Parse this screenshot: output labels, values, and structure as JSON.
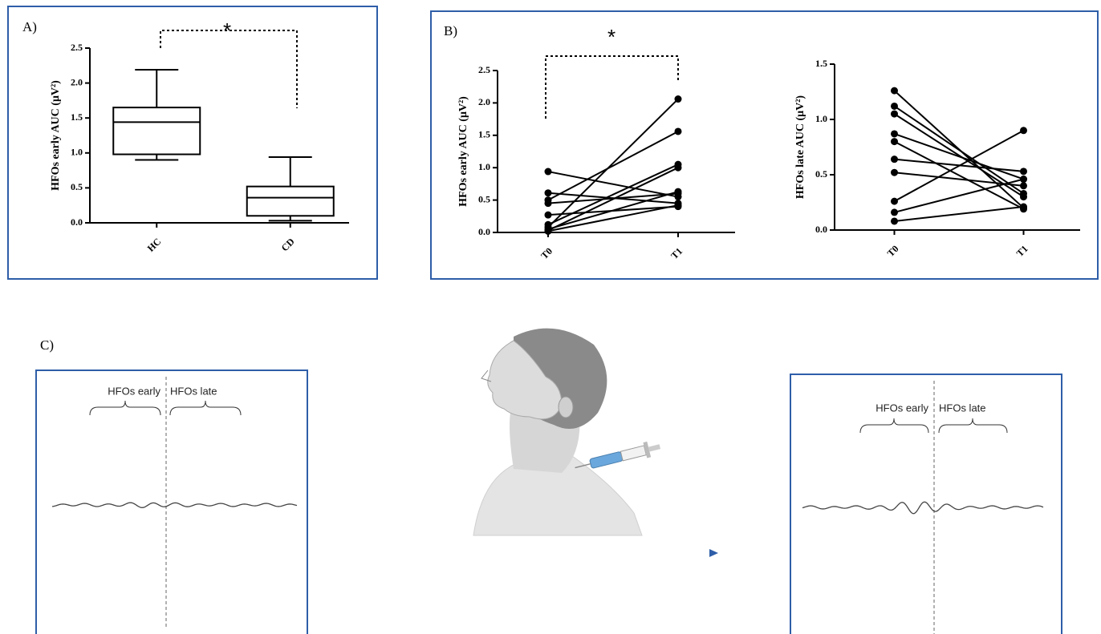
{
  "chart_data": [
    {
      "type": "box",
      "label": "A)",
      "annotation": "*",
      "ylabel": "HFOs early  AUC (μV²)",
      "categories": [
        "HC",
        "CD"
      ],
      "color": "#000000",
      "stats": {
        "min": [
          0.9,
          0.03
        ],
        "q1": [
          0.98,
          0.1
        ],
        "median": [
          1.44,
          0.36
        ],
        "q3": [
          1.65,
          0.52
        ],
        "max": [
          2.19,
          0.94
        ]
      },
      "ylim": [
        0,
        2.5
      ],
      "yticks": [
        {
          "value": 0,
          "label": "0.0"
        },
        0.5,
        {
          "value": 1,
          "label": "1.0"
        },
        1.5,
        {
          "value": 2,
          "label": "2.0"
        },
        2.5
      ]
    },
    {
      "type": "line",
      "label": "B)",
      "annotation": "*",
      "ylabel": "HFOs early AUC (μV²)",
      "categories": [
        "T0",
        "T1"
      ],
      "color": "#000000",
      "series": [
        {
          "values": [
            0.94,
            0.55
          ]
        },
        {
          "values": [
            0.61,
            0.45
          ]
        },
        {
          "values": [
            0.5,
            1.56
          ]
        },
        {
          "values": [
            0.45,
            0.6
          ]
        },
        {
          "values": [
            0.27,
            0.4
          ]
        },
        {
          "values": [
            0.12,
            1.05
          ]
        },
        {
          "values": [
            0.08,
            2.06
          ]
        },
        {
          "values": [
            0.05,
            0.63
          ]
        },
        {
          "values": [
            0.03,
            1.0
          ]
        },
        {
          "values": [
            0.02,
            0.42
          ]
        }
      ],
      "ylim": [
        0,
        2.5
      ],
      "yticks": [
        {
          "value": 0,
          "label": "0.0"
        },
        0.5,
        {
          "value": 1,
          "label": "1.0"
        },
        1.5,
        {
          "value": 2,
          "label": "2.0"
        },
        2.5
      ]
    },
    {
      "type": "line",
      "ylabel": "HFOs late AUC (μV²)",
      "categories": [
        "T0",
        "T1"
      ],
      "color": "#000000",
      "series": [
        {
          "values": [
            1.26,
            0.2
          ]
        },
        {
          "values": [
            1.12,
            0.33
          ]
        },
        {
          "values": [
            1.05,
            0.3
          ]
        },
        {
          "values": [
            0.87,
            0.46
          ]
        },
        {
          "values": [
            0.8,
            0.19
          ]
        },
        {
          "values": [
            0.64,
            0.53
          ]
        },
        {
          "values": [
            0.52,
            0.4
          ]
        },
        {
          "values": [
            0.26,
            0.9
          ]
        },
        {
          "values": [
            0.16,
            0.46
          ]
        },
        {
          "values": [
            0.08,
            0.21
          ]
        }
      ],
      "ylim": [
        0,
        1.5
      ],
      "yticks": [
        {
          "value": 0,
          "label": "0.0"
        },
        0.5,
        {
          "value": 1,
          "label": "1.0"
        },
        1.5
      ]
    }
  ],
  "panel_c": {
    "label": "C)",
    "before": {
      "early": "HFOs early",
      "late": "HFOs late"
    },
    "after": {
      "early": "HFOs early",
      "late": "HFOs late"
    }
  }
}
